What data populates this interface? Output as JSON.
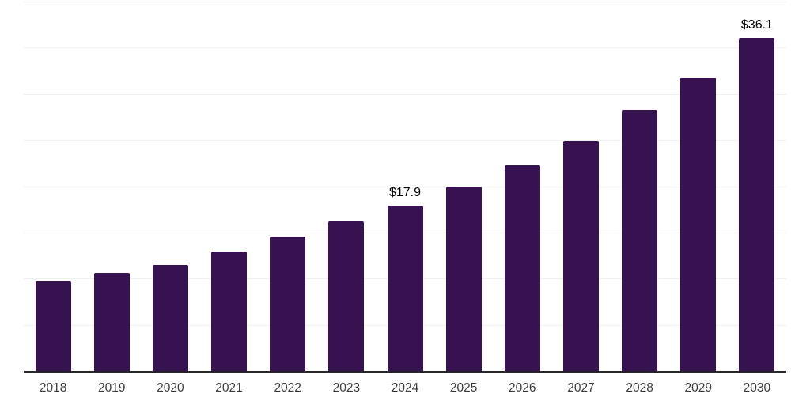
{
  "chart_data": {
    "type": "bar",
    "title": "",
    "xlabel": "",
    "ylabel": "",
    "categories": [
      "2018",
      "2019",
      "2020",
      "2021",
      "2022",
      "2023",
      "2024",
      "2025",
      "2026",
      "2027",
      "2028",
      "2029",
      "2030"
    ],
    "values": [
      9.8,
      10.6,
      11.5,
      12.9,
      14.6,
      16.2,
      17.9,
      20.0,
      22.3,
      24.9,
      28.3,
      31.8,
      36.1
    ],
    "bar_labels": [
      "",
      "",
      "",
      "",
      "",
      "",
      "$17.9",
      "",
      "",
      "",
      "",
      "",
      "$36.1"
    ],
    "ylim": [
      0,
      40
    ],
    "grid_step": 5,
    "grid": "horizontal",
    "legend_position": "none",
    "y_axis_labels_visible": false,
    "colors": {
      "bar": "#371250",
      "axis_line": "#262626",
      "gridline": "#efefef",
      "tick_label": "#3b3b3b",
      "value_label": "#000000",
      "background": "#ffffff"
    }
  }
}
